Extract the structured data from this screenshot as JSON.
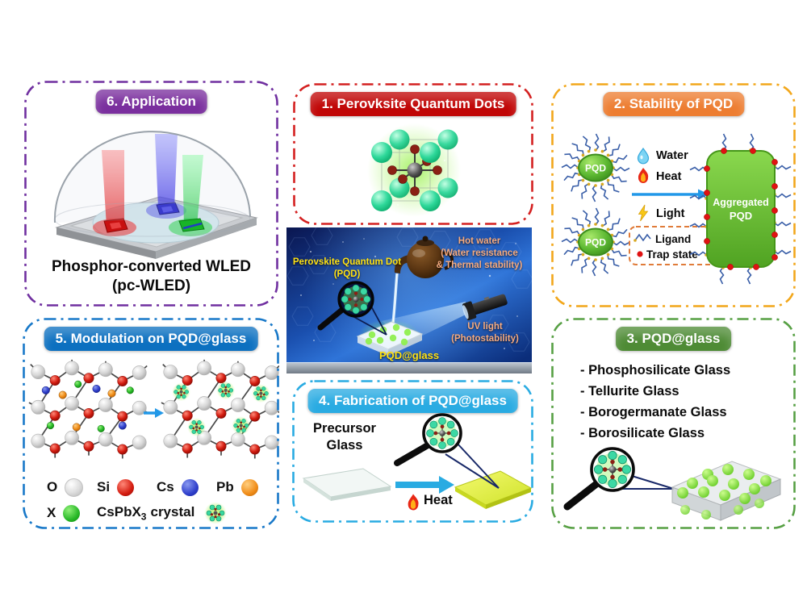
{
  "panels": {
    "p1": {
      "accent": "#D42020",
      "badge_color": "#C00505",
      "title": "1. Perovksite Quantum Dots"
    },
    "p2": {
      "accent": "#F2A71B",
      "badge_color": "#ED7D31",
      "title": "2. Stability of PQD",
      "pqd_label": "PQD",
      "factors": [
        {
          "icon": "water-drop-icon",
          "label": "Water"
        },
        {
          "icon": "flame-icon",
          "label": "Heat"
        },
        {
          "icon": "lightning-icon",
          "label": "Light"
        }
      ],
      "legend": {
        "ligand": "Ligand",
        "trap_state": "Trap state"
      },
      "aggregated_line1": "Aggregated",
      "aggregated_line2": "PQD"
    },
    "p3": {
      "accent": "#57A044",
      "badge_color": "#4E8B35",
      "title": "3. PQD@glass",
      "glass_types": [
        "- Phosphosilicate Glass",
        "- Tellurite Glass",
        "- Borogermanate Glass",
        "- Borosilicate Glass"
      ]
    },
    "p4": {
      "accent": "#29ABE2",
      "badge_color": "#29ABE2",
      "title": "4. Fabrication of PQD@glass",
      "precursor_line1": "Precursor",
      "precursor_line2": "Glass",
      "heat_label": "Heat"
    },
    "p5": {
      "accent": "#1878C8",
      "badge_color": "#0C70C0",
      "title": "5. Modulation on PQD@glass",
      "legend": {
        "o": "O",
        "si": "Si",
        "cs": "Cs",
        "pb": "Pb",
        "x": "X",
        "crystal_prefix": "CsPbX",
        "crystal_sub": "3",
        "crystal_suffix": "crystal"
      }
    },
    "p6": {
      "accent": "#7030A0",
      "badge_color": "#7A2F9E",
      "title": "6. Application",
      "caption_line1": "Phosphor-converted WLED",
      "caption_line2": "(pc-WLED)"
    }
  },
  "center_image": {
    "pqd_caption_line1": "Perovskite Quantum Dot",
    "pqd_caption_line2": "(PQD)",
    "hot_water_line1": "Hot water",
    "hot_water_line2": "(Water resistance",
    "hot_water_line3": "& Thermal stability)",
    "uv_line1": "UV light",
    "uv_line2": "(Photostability)",
    "bottom_label": "PQD@glass"
  }
}
